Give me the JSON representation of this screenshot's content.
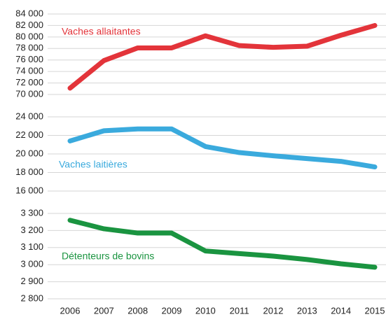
{
  "chart_data": [
    {
      "type": "line",
      "series": [
        {
          "name": "Vaches allaitantes",
          "color": "#e3343a",
          "values": [
            71100,
            75900,
            78100,
            78100,
            80200,
            78500,
            78200,
            78400,
            80300,
            82000
          ]
        }
      ],
      "ylim": [
        70000,
        84000
      ],
      "yticks": [
        {
          "value": 70000,
          "label": "70 000"
        },
        {
          "value": 72000,
          "label": "72 000"
        },
        {
          "value": 74000,
          "label": "74 000"
        },
        {
          "value": 76000,
          "label": "76 000"
        },
        {
          "value": 78000,
          "label": "78 000"
        },
        {
          "value": 80000,
          "label": "80 000"
        },
        {
          "value": 82000,
          "label": "82 000"
        },
        {
          "value": 84000,
          "label": "84 000"
        }
      ],
      "grid": true
    },
    {
      "type": "line",
      "series": [
        {
          "name": "Vaches laitières",
          "color": "#3aaadd",
          "values": [
            21400,
            22500,
            22700,
            22700,
            20800,
            20150,
            19800,
            19500,
            19200,
            18600
          ]
        }
      ],
      "ylim": [
        16000,
        24000
      ],
      "yticks": [
        {
          "value": 16000,
          "label": "16 000"
        },
        {
          "value": 18000,
          "label": "18 000"
        },
        {
          "value": 20000,
          "label": "20 000"
        },
        {
          "value": 22000,
          "label": "22 000"
        },
        {
          "value": 24000,
          "label": "24 000"
        }
      ],
      "grid": true
    },
    {
      "type": "line",
      "categories": [
        "2006",
        "2007",
        "2008",
        "2009",
        "2010",
        "2011",
        "2012",
        "2013",
        "2014",
        "2015"
      ],
      "series": [
        {
          "name": "Détenteurs de bovins",
          "color": "#1a9440",
          "values": [
            3260,
            3210,
            3185,
            3185,
            3080,
            3065,
            3050,
            3030,
            3005,
            2985
          ]
        }
      ],
      "ylim": [
        2800,
        3300
      ],
      "yticks": [
        {
          "value": 2800,
          "label": "2 800"
        },
        {
          "value": 2900,
          "label": "2 900"
        },
        {
          "value": 3000,
          "label": "3 000"
        },
        {
          "value": 3100,
          "label": "3 100"
        },
        {
          "value": 3200,
          "label": "3 200"
        },
        {
          "value": 3300,
          "label": "3 300"
        }
      ],
      "grid": true
    }
  ]
}
